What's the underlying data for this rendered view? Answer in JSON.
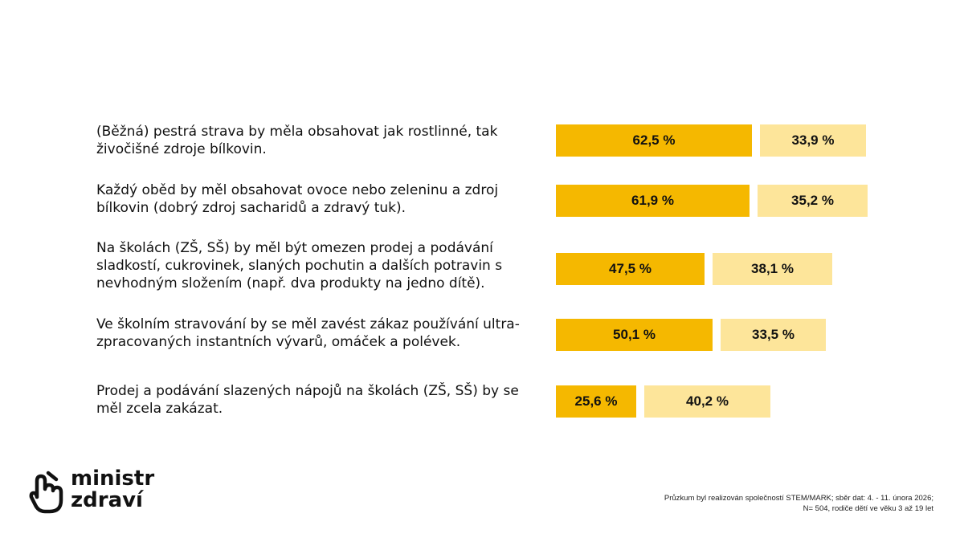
{
  "chart_data": {
    "type": "bar",
    "orientation": "horizontal",
    "stacked": false,
    "categories": [
      "(Běžná) pestrá strava by měla obsahovat jak rostlinné, tak živočišné zdroje bílkovin.",
      "Každý oběd by měl obsahovat ovoce nebo zeleninu a zdroj bílkovin (dobrý zdroj sacharidů a zdravý tuk).",
      "Na školách (ZŠ, SŠ) by měl být omezen prodej a podávání sladkostí, cukrovinek, slaných pochutin a dalších potravin s nevhodným složením (např. dva produkty na jedno dítě).",
      "Ve školním stravování by se měl zavést zákaz používání ultra-zpracovaných instantních vývarů, omáček a polévek.",
      "Prodej a podávání slazených nápojů na školách (ZŠ, SŠ) by se měl zcela zakázat."
    ],
    "series": [
      {
        "name": "primary",
        "color": "#f5b800",
        "values": [
          62.5,
          61.9,
          47.5,
          50.1,
          25.6
        ],
        "labels": [
          "62,5 %",
          "61,9 %",
          "47,5 %",
          "50,1 %",
          "25,6 %"
        ]
      },
      {
        "name": "secondary",
        "color": "#fde59a",
        "values": [
          33.9,
          35.2,
          38.1,
          33.5,
          40.2
        ],
        "labels": [
          "33,9 %",
          "35,2 %",
          "38,1 %",
          "33,5 %",
          "40,2 %"
        ]
      }
    ],
    "title": "",
    "xlabel": "",
    "ylabel": "",
    "xlim": [
      0,
      100
    ]
  },
  "logo": {
    "line1": "ministr",
    "line2": "zdraví"
  },
  "footnote": {
    "line1": "Průzkum byl realizován společností STEM/MARK; sběr dat: 4. - 11. února 2026;",
    "line2": "N= 504, rodiče dětí ve věku 3 až 19 let"
  },
  "colors": {
    "primary": "#f5b800",
    "secondary": "#fde59a",
    "text": "#111111"
  },
  "icons": {
    "logo": "hand-pointing-icon"
  }
}
